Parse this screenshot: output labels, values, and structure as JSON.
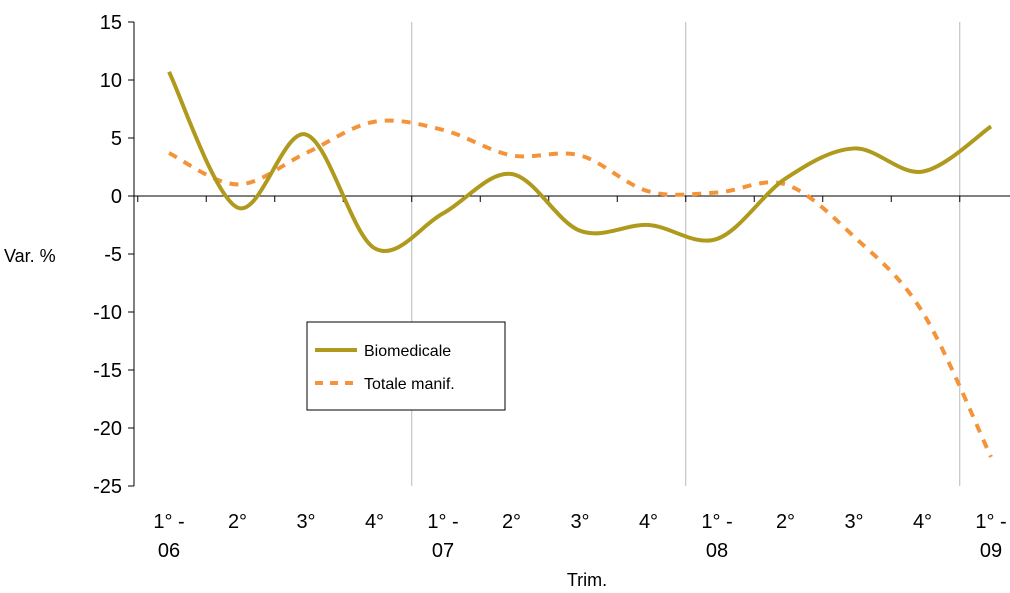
{
  "chart_data": {
    "type": "line",
    "ylabel": "Var. %",
    "xlabel": "Trim.",
    "ylim": [
      -25,
      15
    ],
    "yticks": [
      "15",
      "10",
      "5",
      "0",
      "-5",
      "-10",
      "-15",
      "-20",
      "-25"
    ],
    "categories": [
      {
        "line1": "1° -",
        "line2": "06"
      },
      {
        "line1": "2°",
        "line2": ""
      },
      {
        "line1": "3°",
        "line2": ""
      },
      {
        "line1": "4°",
        "line2": ""
      },
      {
        "line1": "1° -",
        "line2": "07"
      },
      {
        "line1": "2°",
        "line2": ""
      },
      {
        "line1": "3°",
        "line2": ""
      },
      {
        "line1": "4°",
        "line2": ""
      },
      {
        "line1": "1° -",
        "line2": "08"
      },
      {
        "line1": "2°",
        "line2": ""
      },
      {
        "line1": "3°",
        "line2": ""
      },
      {
        "line1": "4°",
        "line2": ""
      },
      {
        "line1": "1° -",
        "line2": "09"
      }
    ],
    "grid": "vertical lines at year boundaries",
    "legend_position": "center-left",
    "series": [
      {
        "name": "Biomedicale",
        "color": "#B09A1E",
        "style": "solid",
        "values": [
          10.7,
          -1.0,
          5.3,
          -4.5,
          -1.5,
          1.9,
          -3.0,
          -2.5,
          -3.7,
          1.5,
          4.1,
          2.1,
          6.0
        ]
      },
      {
        "name": "Totale manif.",
        "color": "#F4943A",
        "style": "dashed",
        "values": [
          3.7,
          1.0,
          3.7,
          6.4,
          5.7,
          3.5,
          3.5,
          0.4,
          0.3,
          1.0,
          -3.5,
          -10.0,
          -22.5
        ]
      }
    ]
  }
}
